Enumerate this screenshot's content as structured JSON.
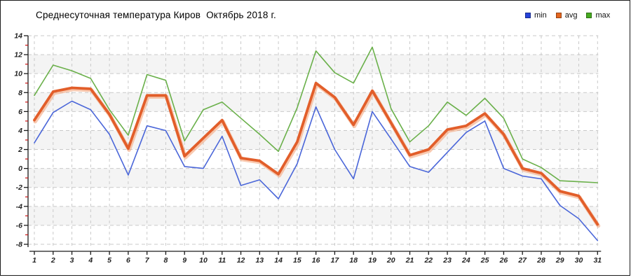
{
  "window": {
    "background": "#ffffff",
    "border_color": "#1c1c1c"
  },
  "chart_data": {
    "type": "line",
    "title": "Среднесуточная температура Киров  Октябрь 2018 г.",
    "xlabel": "",
    "ylabel": "",
    "x": [
      1,
      2,
      3,
      4,
      5,
      6,
      7,
      8,
      9,
      10,
      11,
      12,
      13,
      14,
      15,
      16,
      17,
      18,
      19,
      20,
      21,
      22,
      23,
      24,
      25,
      26,
      27,
      28,
      29,
      30,
      31
    ],
    "x_ticks": [
      "1",
      "2",
      "3",
      "4",
      "5",
      "6",
      "7",
      "8",
      "9",
      "10",
      "11",
      "12",
      "13",
      "14",
      "15",
      "16",
      "17",
      "18",
      "19",
      "20",
      "21",
      "22",
      "23",
      "24",
      "25",
      "26",
      "27",
      "28",
      "29",
      "30",
      "31"
    ],
    "y_ticks": [
      14,
      12,
      10,
      8,
      6,
      4,
      2,
      0,
      -2,
      -4,
      -6,
      -8
    ],
    "ylim": [
      -8,
      14
    ],
    "xlim": [
      1,
      31
    ],
    "grid": true,
    "legend_position": "top-right",
    "series": [
      {
        "name": "min",
        "color": "#4a66d9",
        "swatch": "#2643d9",
        "values": [
          2.7,
          5.9,
          7.1,
          6.2,
          3.6,
          -0.7,
          4.5,
          4.0,
          0.2,
          0.0,
          3.4,
          -1.8,
          -1.2,
          -3.2,
          0.5,
          6.5,
          2.0,
          -1.1,
          6.0,
          3.1,
          0.2,
          -0.4,
          1.7,
          3.8,
          5.0,
          0.0,
          -0.8,
          -1.1,
          -3.9,
          -5.3,
          -7.6
        ]
      },
      {
        "name": "avg",
        "color": "#e25e2a",
        "halo_color": "#f5a67d",
        "swatch": "#e4661f",
        "values": [
          5.1,
          8.1,
          8.5,
          8.4,
          5.7,
          2.1,
          7.7,
          7.7,
          1.3,
          3.2,
          5.1,
          1.1,
          0.8,
          -0.6,
          2.8,
          9.0,
          7.5,
          4.6,
          8.2,
          4.8,
          1.4,
          2.0,
          4.1,
          4.5,
          5.8,
          3.6,
          0.0,
          -0.5,
          -2.4,
          -2.9,
          -5.9
        ]
      },
      {
        "name": "max",
        "color": "#6ab04a",
        "swatch": "#46ab20",
        "values": [
          7.7,
          10.9,
          10.3,
          9.5,
          6.2,
          3.5,
          9.9,
          9.3,
          2.9,
          6.2,
          7.0,
          5.3,
          3.6,
          1.8,
          6.4,
          12.4,
          10.1,
          9.0,
          12.8,
          6.3,
          2.8,
          4.5,
          7.0,
          5.6,
          7.4,
          5.3,
          1.0,
          0.1,
          -1.3,
          -1.4,
          -1.5
        ]
      }
    ],
    "styles": {
      "stripe_color": "#f4f4f4",
      "grid_color": "#c9c9c9",
      "axis_color": "#1a1a1a",
      "minor_tick_color": "#cc1111",
      "tick_label_color": "#1f1f1f"
    }
  }
}
